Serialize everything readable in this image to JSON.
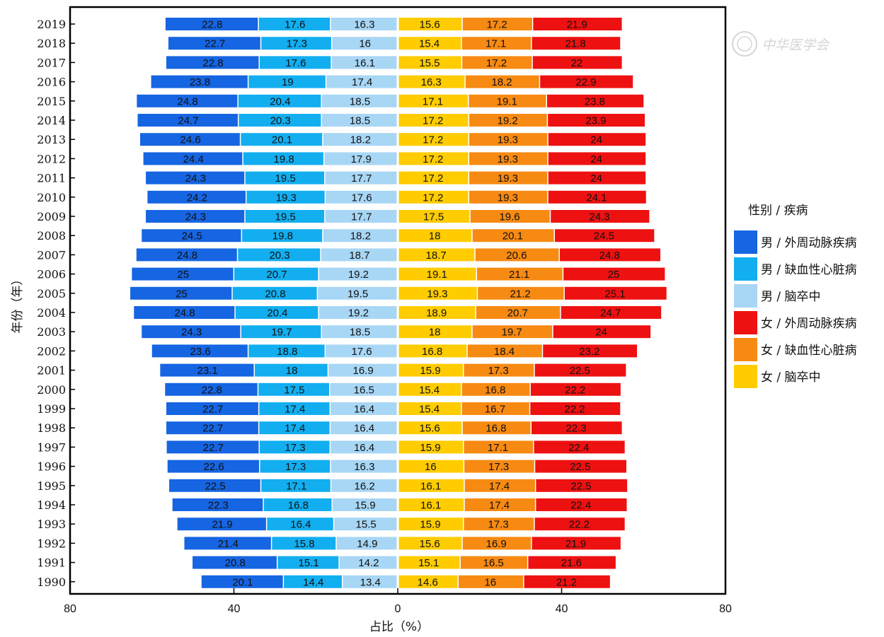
{
  "chart_data": {
    "type": "bar",
    "orientation": "horizontal-stacked-diverging",
    "title": "",
    "xlabel": "占比（%）",
    "ylabel": "年份（年）",
    "xlim": [
      -80,
      80
    ],
    "xticks": [
      -80,
      -40,
      0,
      40,
      80
    ],
    "xtick_labels": [
      "80",
      "40",
      "0",
      "40",
      "80"
    ],
    "categories": [
      "1990",
      "1991",
      "1992",
      "1993",
      "1994",
      "1995",
      "1996",
      "1997",
      "1998",
      "1999",
      "2000",
      "2001",
      "2002",
      "2003",
      "2004",
      "2005",
      "2006",
      "2007",
      "2008",
      "2009",
      "2010",
      "2011",
      "2012",
      "2013",
      "2014",
      "2015",
      "2016",
      "2017",
      "2018",
      "2019"
    ],
    "legend": {
      "title": "性别 / 疾病",
      "position": "right"
    },
    "series": [
      {
        "name": "男 / 外周动脉疾病",
        "side": "left",
        "color": "#1665e2",
        "values": [
          20.1,
          20.8,
          21.4,
          21.9,
          22.3,
          22.5,
          22.6,
          22.7,
          22.7,
          22.7,
          22.8,
          23.1,
          23.6,
          24.3,
          24.8,
          25,
          25,
          24.8,
          24.5,
          24.3,
          24.2,
          24.3,
          24.4,
          24.6,
          24.7,
          24.8,
          23.8,
          22.8,
          22.7,
          22.8
        ]
      },
      {
        "name": "男 / 缺血性心脏病",
        "side": "left",
        "color": "#12aef0",
        "values": [
          14.4,
          15.1,
          15.8,
          16.4,
          16.8,
          17.1,
          17.3,
          17.3,
          17.4,
          17.4,
          17.5,
          18,
          18.8,
          19.7,
          20.4,
          20.8,
          20.7,
          20.3,
          19.8,
          19.5,
          19.3,
          19.5,
          19.8,
          20.1,
          20.3,
          20.4,
          19,
          17.6,
          17.3,
          17.6
        ]
      },
      {
        "name": "男 / 脑卒中",
        "side": "left",
        "color": "#a8d6f5",
        "values": [
          13.4,
          14.2,
          14.9,
          15.5,
          15.9,
          16.2,
          16.3,
          16.4,
          16.4,
          16.4,
          16.5,
          16.9,
          17.6,
          18.5,
          19.2,
          19.5,
          19.2,
          18.7,
          18.2,
          17.7,
          17.6,
          17.7,
          17.9,
          18.2,
          18.5,
          18.5,
          17.4,
          16.1,
          16,
          16.3
        ]
      },
      {
        "name": "女 / 外周动脉疾病",
        "side": "right",
        "color": "#ee1111",
        "values": [
          21.2,
          21.6,
          21.9,
          22.2,
          22.4,
          22.5,
          22.5,
          22.4,
          22.3,
          22.2,
          22.2,
          22.5,
          23.2,
          24,
          24.7,
          25.1,
          25,
          24.8,
          24.5,
          24.3,
          24.1,
          24,
          24,
          24,
          23.9,
          23.8,
          22.9,
          22,
          21.8,
          21.9
        ]
      },
      {
        "name": "女 / 缺血性心脏病",
        "side": "right",
        "color": "#f78a12",
        "values": [
          16,
          16.5,
          16.9,
          17.3,
          17.4,
          17.4,
          17.3,
          17.1,
          16.8,
          16.7,
          16.8,
          17.3,
          18.4,
          19.7,
          20.7,
          21.2,
          21.1,
          20.6,
          20.1,
          19.6,
          19.3,
          19.3,
          19.3,
          19.3,
          19.2,
          19.1,
          18.2,
          17.2,
          17.1,
          17.2
        ]
      },
      {
        "name": "女 / 脑卒中",
        "side": "right",
        "color": "#ffcc00",
        "values": [
          14.6,
          15.1,
          15.6,
          15.9,
          16.1,
          16.1,
          16,
          15.9,
          15.6,
          15.4,
          15.4,
          15.9,
          16.8,
          18,
          18.9,
          19.3,
          19.1,
          18.7,
          18,
          17.5,
          17.2,
          17.2,
          17.2,
          17.2,
          17.2,
          17.1,
          16.3,
          15.5,
          15.4,
          15.6
        ]
      }
    ],
    "left_stack_order_from_center": [
      "男 / 脑卒中",
      "男 / 缺血性心脏病",
      "男 / 外周动脉疾病"
    ],
    "right_stack_order_from_center": [
      "女 / 脑卒中",
      "女 / 缺血性心脏病",
      "女 / 外周动脉疾病"
    ],
    "legend_order": [
      "男 / 外周动脉疾病",
      "男 / 缺血性心脏病",
      "男 / 脑卒中",
      "女 / 外周动脉疾病",
      "女 / 缺血性心脏病",
      "女 / 脑卒中"
    ]
  },
  "watermark": {
    "text": "中华医学会"
  }
}
